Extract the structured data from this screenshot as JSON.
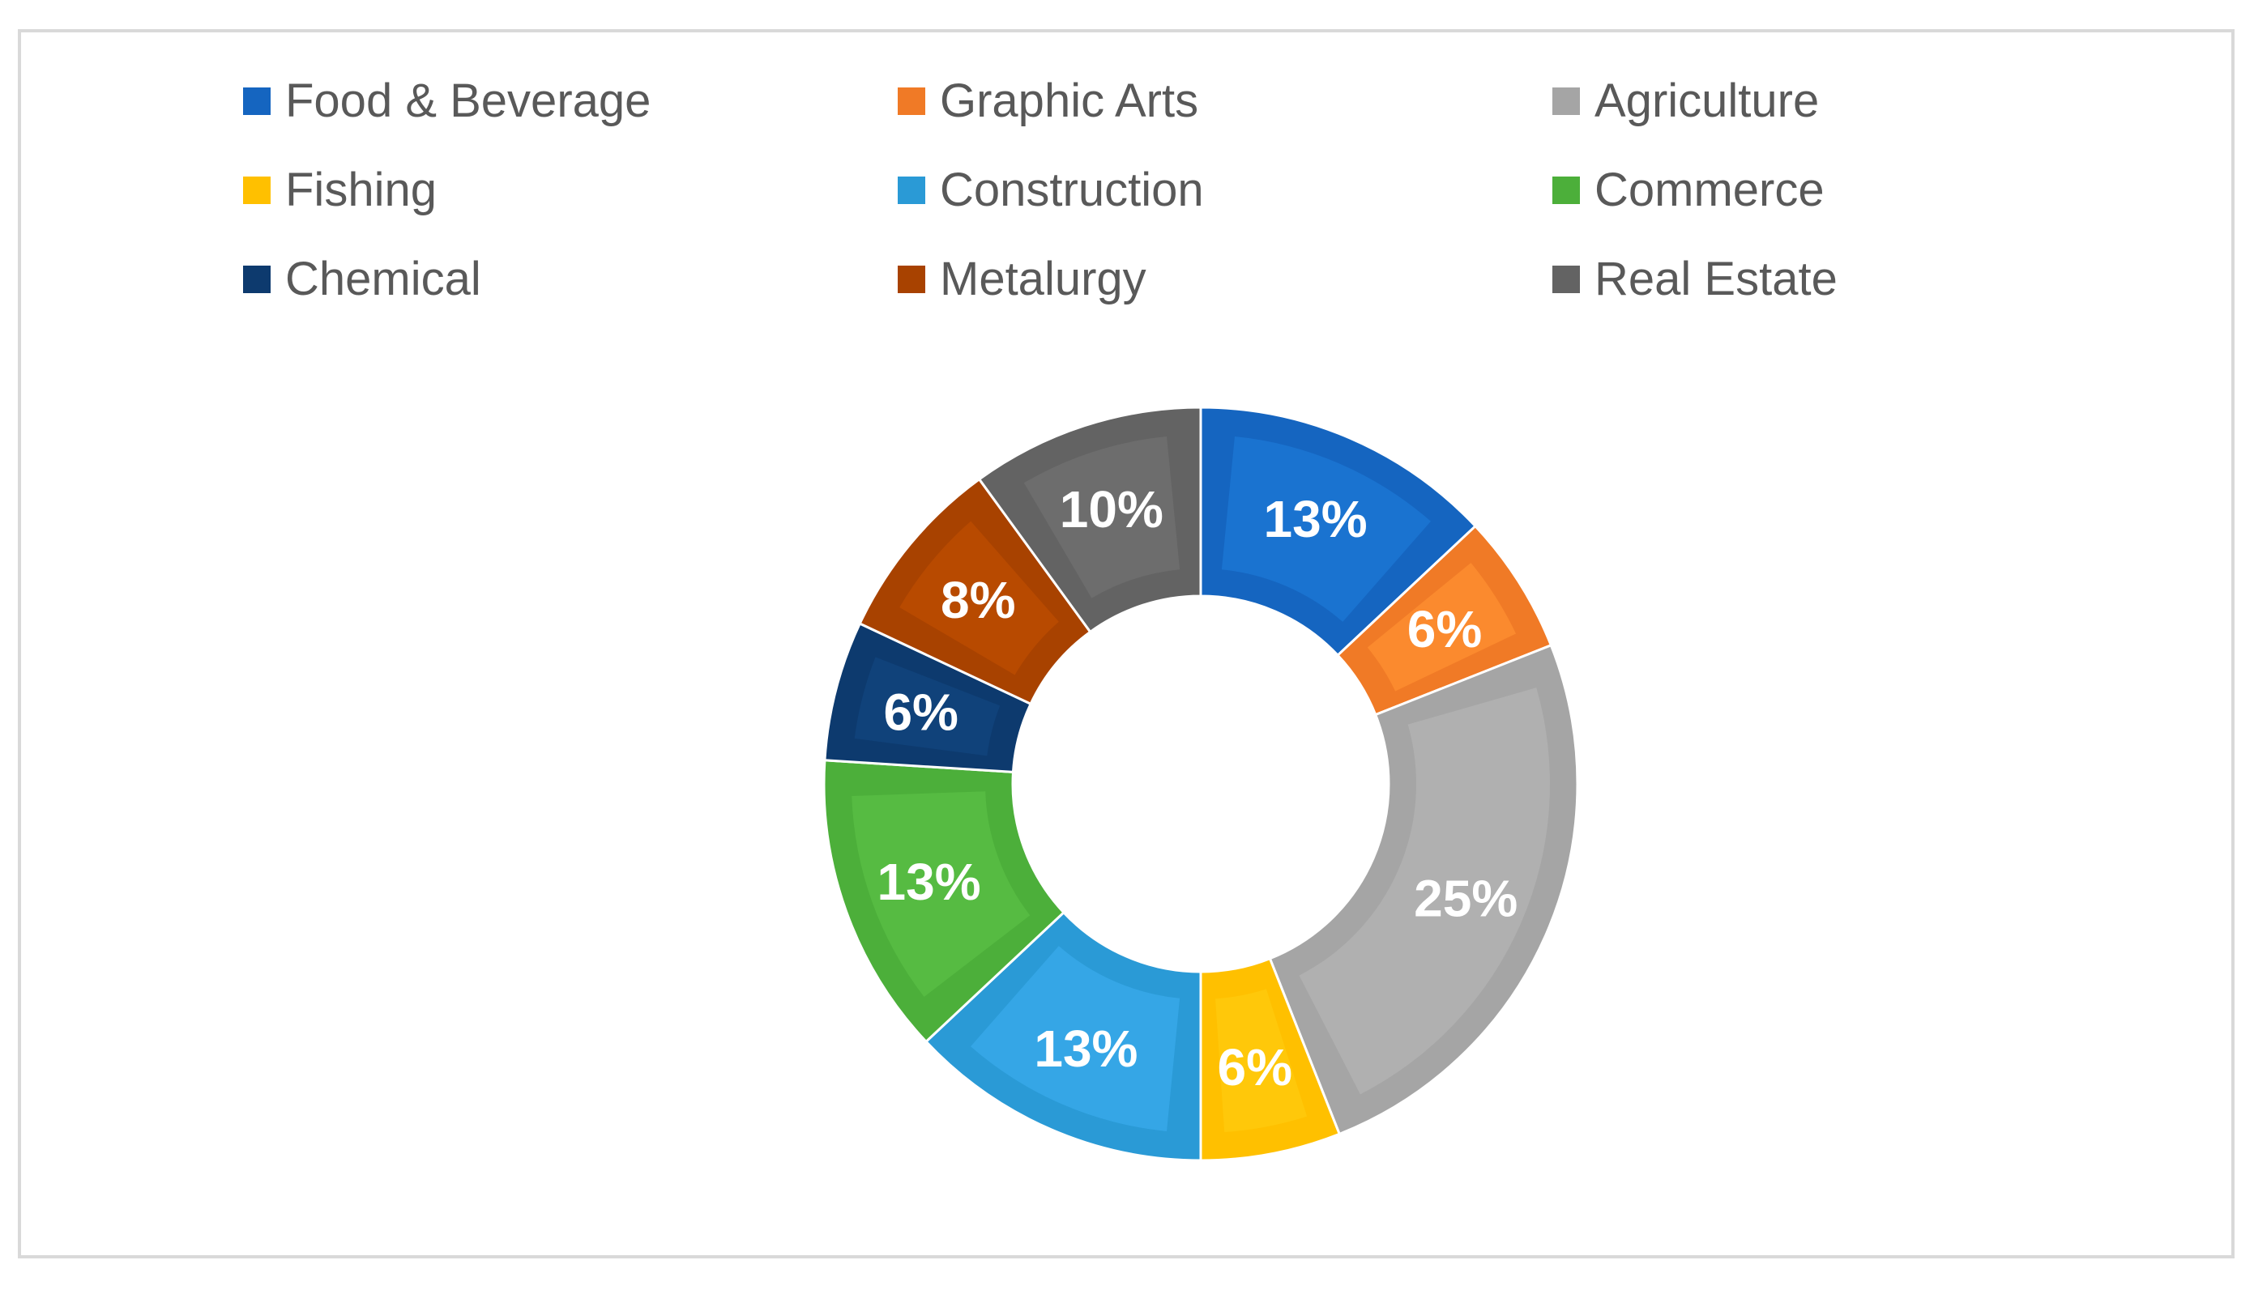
{
  "chart_data": {
    "type": "pie",
    "variant": "donut",
    "title": "",
    "legend_position": "top",
    "categories": [
      "Food & Beverage",
      "Graphic Arts",
      "Agriculture",
      "Fishing",
      "Construction",
      "Commerce",
      "Chemical",
      "Metalurgy",
      "Real Estate"
    ],
    "values": [
      13,
      6,
      25,
      6,
      13,
      13,
      6,
      8,
      10
    ],
    "data_labels": [
      "13%",
      "6%",
      "25%",
      "6%",
      "13%",
      "13%",
      "6%",
      "8%",
      "10%"
    ],
    "unit": "%",
    "colors": [
      "#1565c0",
      "#f07a26",
      "#a5a5a5",
      "#ffc000",
      "#2a9ad6",
      "#4caf3a",
      "#0d3a6e",
      "#a84200",
      "#636363"
    ],
    "colors_inner": [
      "#1a73d0",
      "#fb8a2e",
      "#b0b0b0",
      "#ffc80a",
      "#35a6e6",
      "#56bb42",
      "#10427a",
      "#b84a00",
      "#6d6d6d"
    ],
    "legend_text_color": "#595959",
    "label_text_color": "#ffffff",
    "frame_border_color": "#d9d9d9"
  }
}
